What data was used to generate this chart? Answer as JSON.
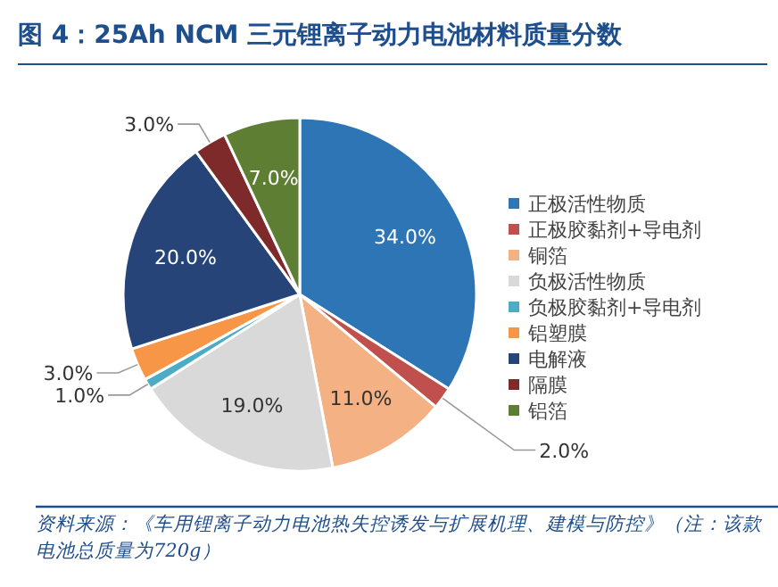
{
  "chart_data": {
    "type": "pie",
    "title": "图 4：25Ah NCM 三元锂离子动力电池材料质量分数",
    "categories": [
      "正极活性物质",
      "正极胶黏剂+导电剂",
      "铜箔",
      "负极活性物质",
      "负极胶黏剂+导电剂",
      "铝塑膜",
      "电解液",
      "隔膜",
      "铝箔"
    ],
    "values": [
      34,
      2,
      11,
      19,
      1,
      3,
      20,
      3,
      7
    ],
    "value_labels": [
      "34.0%",
      "2.0%",
      "11.0%",
      "19.0%",
      "1.0%",
      "3.0%",
      "20.0%",
      "3.0%",
      "7.0%"
    ],
    "colors": [
      "#2e75b6",
      "#c0504d",
      "#f4b183",
      "#d9d9d9",
      "#4bacc6",
      "#f79646",
      "#264478",
      "#7f2a2a",
      "#5e7f33"
    ],
    "legend": "right",
    "annotations": [
      "资料来源：《车用锂离子动力电池热失控诱发与扩展机理、建模与防控》（注：该款电池总质量为720g）"
    ]
  }
}
